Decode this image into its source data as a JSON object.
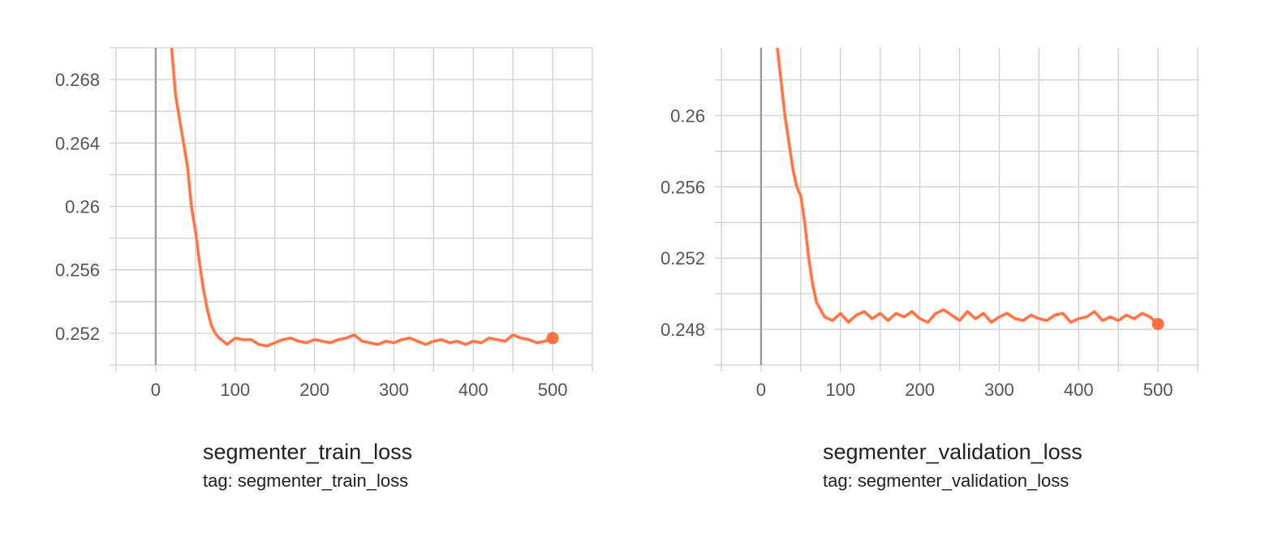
{
  "colors": {
    "line": "#ff7043",
    "raw": "#fbd2c2",
    "grid": "#d0d0d0",
    "zero": "#9a9a9a",
    "text": "#212121",
    "ticks": "#555555"
  },
  "chart_data": [
    {
      "type": "line",
      "title": "segmenter_train_loss",
      "tag": "tag: segmenter_train_loss",
      "xlabel": "",
      "ylabel": "",
      "xlim": [
        -50,
        550
      ],
      "ylim": [
        0.25,
        0.27
      ],
      "x_ticks": [
        0,
        100,
        200,
        300,
        400,
        500
      ],
      "x_tick_labels": [
        "0",
        "100",
        "200",
        "300",
        "400",
        "500"
      ],
      "y_ticks": [
        0.252,
        0.256,
        0.26,
        0.264,
        0.268
      ],
      "y_tick_labels": [
        "0.252",
        "0.256",
        "0.26",
        "0.264",
        "0.268"
      ],
      "grid": true,
      "series": [
        {
          "x": [
            0,
            20,
            25,
            30,
            35,
            40,
            45,
            50,
            55,
            60,
            65,
            70,
            75,
            80,
            90,
            100,
            110,
            120,
            130,
            140,
            150,
            160,
            170,
            180,
            190,
            200,
            210,
            220,
            230,
            240,
            250,
            260,
            270,
            280,
            290,
            300,
            310,
            320,
            330,
            340,
            350,
            360,
            370,
            380,
            390,
            400,
            410,
            420,
            430,
            440,
            450,
            460,
            470,
            480,
            490,
            500
          ],
          "values": [
            0.272,
            0.27,
            0.267,
            0.2655,
            0.264,
            0.2625,
            0.26,
            0.2585,
            0.2565,
            0.2548,
            0.2535,
            0.2525,
            0.252,
            0.2517,
            0.2513,
            0.2517,
            0.2516,
            0.2516,
            0.2513,
            0.2512,
            0.2514,
            0.2516,
            0.2517,
            0.2515,
            0.2514,
            0.2516,
            0.2515,
            0.2514,
            0.2516,
            0.2517,
            0.2519,
            0.2515,
            0.2514,
            0.2513,
            0.2515,
            0.2514,
            0.2516,
            0.2517,
            0.2515,
            0.2513,
            0.2515,
            0.2516,
            0.2514,
            0.2515,
            0.2513,
            0.2515,
            0.2514,
            0.2517,
            0.2516,
            0.2515,
            0.2519,
            0.2517,
            0.2516,
            0.2514,
            0.2515,
            0.2517
          ]
        }
      ]
    },
    {
      "type": "line",
      "title": "segmenter_validation_loss",
      "tag": "tag: segmenter_validation_loss",
      "xlabel": "",
      "ylabel": "",
      "xlim": [
        -50,
        550
      ],
      "ylim": [
        0.246,
        0.2638
      ],
      "x_ticks": [
        0,
        100,
        200,
        300,
        400,
        500
      ],
      "x_tick_labels": [
        "0",
        "100",
        "200",
        "300",
        "400",
        "500"
      ],
      "y_ticks": [
        0.248,
        0.252,
        0.256,
        0.26
      ],
      "y_tick_labels": [
        "0.248",
        "0.252",
        "0.256",
        "0.26"
      ],
      "grid": true,
      "series": [
        {
          "x": [
            0,
            20,
            25,
            30,
            35,
            40,
            45,
            50,
            55,
            60,
            65,
            70,
            80,
            90,
            100,
            110,
            120,
            130,
            140,
            150,
            160,
            170,
            180,
            190,
            200,
            210,
            220,
            230,
            240,
            250,
            260,
            270,
            280,
            290,
            300,
            310,
            320,
            330,
            340,
            350,
            360,
            370,
            380,
            390,
            400,
            410,
            420,
            430,
            440,
            450,
            460,
            470,
            480,
            490,
            500
          ],
          "values": [
            0.2665,
            0.264,
            0.262,
            0.26,
            0.2585,
            0.257,
            0.256,
            0.2555,
            0.254,
            0.252,
            0.2505,
            0.2495,
            0.2487,
            0.2485,
            0.2489,
            0.2484,
            0.2488,
            0.249,
            0.2486,
            0.2489,
            0.2485,
            0.2489,
            0.2487,
            0.249,
            0.2486,
            0.2484,
            0.2489,
            0.2491,
            0.2488,
            0.2485,
            0.249,
            0.2486,
            0.2489,
            0.2484,
            0.2487,
            0.2489,
            0.2486,
            0.2485,
            0.2488,
            0.2486,
            0.2485,
            0.2488,
            0.2489,
            0.2484,
            0.2486,
            0.2487,
            0.249,
            0.2485,
            0.2487,
            0.2485,
            0.2488,
            0.2486,
            0.2489,
            0.2487,
            0.2483
          ]
        }
      ]
    }
  ]
}
